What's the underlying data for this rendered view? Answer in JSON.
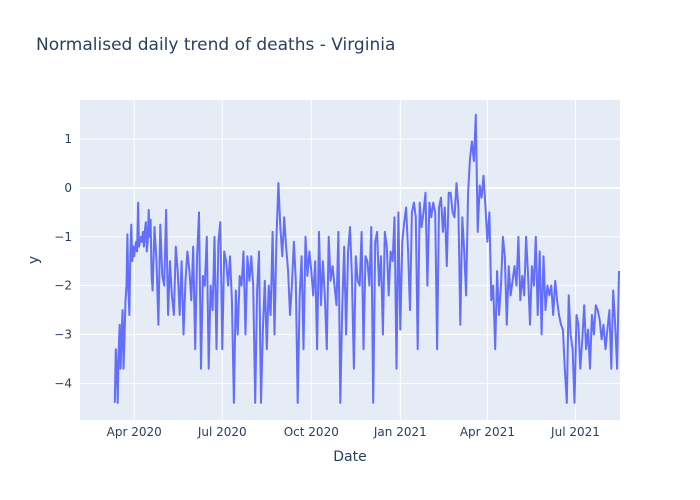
{
  "chart_data": {
    "type": "line",
    "title": "Normalised daily trend of deaths - Virginia",
    "xlabel": "Date",
    "ylabel": "y",
    "x_range": [
      "2020-02-05",
      "2021-08-16"
    ],
    "ylim": [
      -4.75,
      1.8
    ],
    "y_ticks": [
      1,
      0,
      -1,
      -2,
      -3,
      -4
    ],
    "y_tick_labels": [
      "1",
      "0",
      "−1",
      "−2",
      "−3",
      "−4"
    ],
    "x_ticks": [
      "2020-04-01",
      "2020-07-01",
      "2020-10-01",
      "2021-01-01",
      "2021-04-01",
      "2021-07-01"
    ],
    "x_tick_labels": [
      "Apr 2020",
      "Jul 2020",
      "Oct 2020",
      "Jan 2021",
      "Apr 2021",
      "Jul 2021"
    ],
    "grid": true,
    "colors": {
      "line": "#636efa",
      "plot_bg": "#e5ecf6",
      "grid": "#ffffff",
      "text": "#2a3f5f"
    },
    "series": [
      {
        "x": [
          "2020-03-12",
          "2020-03-13",
          "2020-03-14",
          "2020-03-15",
          "2020-03-16",
          "2020-03-17",
          "2020-03-18",
          "2020-03-19",
          "2020-03-20",
          "2020-03-21",
          "2020-03-22",
          "2020-03-23",
          "2020-03-24",
          "2020-03-25",
          "2020-03-26",
          "2020-03-27",
          "2020-03-28",
          "2020-03-29",
          "2020-03-30",
          "2020-03-31",
          "2020-04-01",
          "2020-04-02",
          "2020-04-03",
          "2020-04-04",
          "2020-04-05",
          "2020-04-06",
          "2020-04-07",
          "2020-04-08",
          "2020-04-09",
          "2020-04-10",
          "2020-04-11",
          "2020-04-12",
          "2020-04-13",
          "2020-04-14",
          "2020-04-15",
          "2020-04-16",
          "2020-04-17",
          "2020-04-18",
          "2020-04-19",
          "2020-04-20",
          "2020-04-22",
          "2020-04-24",
          "2020-04-26",
          "2020-04-28",
          "2020-04-30",
          "2020-05-02",
          "2020-05-04",
          "2020-05-06",
          "2020-05-08",
          "2020-05-10",
          "2020-05-12",
          "2020-05-14",
          "2020-05-16",
          "2020-05-18",
          "2020-05-20",
          "2020-05-22",
          "2020-05-24",
          "2020-05-26",
          "2020-05-28",
          "2020-05-30",
          "2020-06-01",
          "2020-06-03",
          "2020-06-05",
          "2020-06-07",
          "2020-06-09",
          "2020-06-11",
          "2020-06-13",
          "2020-06-15",
          "2020-06-17",
          "2020-06-19",
          "2020-06-21",
          "2020-06-23",
          "2020-06-25",
          "2020-06-27",
          "2020-06-29",
          "2020-07-01",
          "2020-07-03",
          "2020-07-05",
          "2020-07-07",
          "2020-07-09",
          "2020-07-11",
          "2020-07-13",
          "2020-07-15",
          "2020-07-17",
          "2020-07-19",
          "2020-07-21",
          "2020-07-23",
          "2020-07-25",
          "2020-07-27",
          "2020-07-29",
          "2020-07-31",
          "2020-08-02",
          "2020-08-04",
          "2020-08-06",
          "2020-08-08",
          "2020-08-10",
          "2020-08-12",
          "2020-08-14",
          "2020-08-16",
          "2020-08-18",
          "2020-08-20",
          "2020-08-22",
          "2020-08-24",
          "2020-08-26",
          "2020-08-28",
          "2020-08-30",
          "2020-09-01",
          "2020-09-03",
          "2020-09-05",
          "2020-09-07",
          "2020-09-09",
          "2020-09-11",
          "2020-09-13",
          "2020-09-15",
          "2020-09-17",
          "2020-09-19",
          "2020-09-21",
          "2020-09-23",
          "2020-09-25",
          "2020-09-27",
          "2020-09-29",
          "2020-10-01",
          "2020-10-03",
          "2020-10-05",
          "2020-10-07",
          "2020-10-09",
          "2020-10-11",
          "2020-10-13",
          "2020-10-15",
          "2020-10-17",
          "2020-10-19",
          "2020-10-21",
          "2020-10-23",
          "2020-10-25",
          "2020-10-27",
          "2020-10-29",
          "2020-10-31",
          "2020-11-02",
          "2020-11-04",
          "2020-11-06",
          "2020-11-08",
          "2020-11-10",
          "2020-11-12",
          "2020-11-14",
          "2020-11-16",
          "2020-11-18",
          "2020-11-20",
          "2020-11-22",
          "2020-11-24",
          "2020-11-26",
          "2020-11-28",
          "2020-11-30",
          "2020-12-02",
          "2020-12-04",
          "2020-12-06",
          "2020-12-08",
          "2020-12-10",
          "2020-12-12",
          "2020-12-14",
          "2020-12-16",
          "2020-12-18",
          "2020-12-20",
          "2020-12-22",
          "2020-12-24",
          "2020-12-26",
          "2020-12-28",
          "2020-12-30",
          "2021-01-01",
          "2021-01-03",
          "2021-01-05",
          "2021-01-07",
          "2021-01-09",
          "2021-01-11",
          "2021-01-13",
          "2021-01-15",
          "2021-01-17",
          "2021-01-19",
          "2021-01-21",
          "2021-01-23",
          "2021-01-25",
          "2021-01-27",
          "2021-01-29",
          "2021-01-31",
          "2021-02-02",
          "2021-02-04",
          "2021-02-06",
          "2021-02-08",
          "2021-02-10",
          "2021-02-12",
          "2021-02-14",
          "2021-02-16",
          "2021-02-18",
          "2021-02-20",
          "2021-02-22",
          "2021-02-24",
          "2021-02-26",
          "2021-02-28",
          "2021-03-02",
          "2021-03-04",
          "2021-03-06",
          "2021-03-08",
          "2021-03-10",
          "2021-03-12",
          "2021-03-14",
          "2021-03-16",
          "2021-03-18",
          "2021-03-20",
          "2021-03-22",
          "2021-03-24",
          "2021-03-26",
          "2021-03-28",
          "2021-03-30",
          "2021-04-01",
          "2021-04-03",
          "2021-04-05",
          "2021-04-07",
          "2021-04-09",
          "2021-04-11",
          "2021-04-13",
          "2021-04-15",
          "2021-04-17",
          "2021-04-19",
          "2021-04-21",
          "2021-04-23",
          "2021-04-25",
          "2021-04-27",
          "2021-04-29",
          "2021-05-01",
          "2021-05-03",
          "2021-05-05",
          "2021-05-07",
          "2021-05-09",
          "2021-05-11",
          "2021-05-13",
          "2021-05-15",
          "2021-05-17",
          "2021-05-19",
          "2021-05-21",
          "2021-05-23",
          "2021-05-25",
          "2021-05-27",
          "2021-05-29",
          "2021-05-31",
          "2021-06-02",
          "2021-06-04",
          "2021-06-06",
          "2021-06-08",
          "2021-06-10",
          "2021-06-12",
          "2021-06-14",
          "2021-06-16",
          "2021-06-18",
          "2021-06-20",
          "2021-06-22",
          "2021-06-24",
          "2021-06-26",
          "2021-06-28",
          "2021-06-30",
          "2021-07-02",
          "2021-07-04",
          "2021-07-06",
          "2021-07-08",
          "2021-07-10",
          "2021-07-12",
          "2021-07-14",
          "2021-07-16",
          "2021-07-18",
          "2021-07-20",
          "2021-07-22",
          "2021-07-24",
          "2021-07-26",
          "2021-07-28",
          "2021-07-30",
          "2021-08-01",
          "2021-08-03",
          "2021-08-05",
          "2021-08-07",
          "2021-08-09",
          "2021-08-11",
          "2021-08-13",
          "2021-08-15"
        ],
        "y": [
          -4.4,
          -3.3,
          -3.7,
          -4.4,
          -3.3,
          -2.8,
          -3.7,
          -3.0,
          -2.5,
          -3.7,
          -3.1,
          -2.3,
          -2.0,
          -0.95,
          -2.1,
          -2.6,
          -1.4,
          -0.75,
          -1.5,
          -1.2,
          -1.4,
          -1.2,
          -1.1,
          -1.3,
          -0.3,
          -1.2,
          -1.1,
          -1.0,
          -1.1,
          -0.9,
          -1.2,
          -0.9,
          -0.7,
          -1.3,
          -1.1,
          -0.45,
          -1.0,
          -0.65,
          -1.8,
          -2.1,
          -0.8,
          -1.5,
          -2.8,
          -0.75,
          -1.8,
          -2.0,
          -0.45,
          -2.6,
          -1.5,
          -2.2,
          -2.6,
          -1.2,
          -1.7,
          -2.6,
          -1.5,
          -3.0,
          -1.9,
          -1.3,
          -1.7,
          -2.3,
          -1.2,
          -3.3,
          -1.4,
          -0.5,
          -3.7,
          -1.8,
          -2.0,
          -1.0,
          -3.7,
          -2.0,
          -2.5,
          -1.0,
          -3.3,
          -1.1,
          -0.7,
          -3.3,
          -1.3,
          -1.5,
          -2.0,
          -1.4,
          -2.3,
          -4.4,
          -2.1,
          -3.0,
          -1.8,
          -2.0,
          -1.3,
          -3.0,
          -1.4,
          -1.9,
          -1.4,
          -2.0,
          -4.4,
          -2.1,
          -1.3,
          -4.4,
          -2.9,
          -1.9,
          -3.3,
          -2.0,
          -2.6,
          -0.9,
          -3.0,
          -1.0,
          0.1,
          -0.8,
          -1.4,
          -0.6,
          -1.2,
          -1.7,
          -2.6,
          -2.0,
          -1.1,
          -1.9,
          -4.4,
          -2.2,
          -1.4,
          -3.3,
          -1.0,
          -1.8,
          -1.3,
          -1.7,
          -2.2,
          -1.5,
          -3.3,
          -0.9,
          -2.4,
          -1.5,
          -2.2,
          -3.3,
          -1.0,
          -1.9,
          -1.6,
          -2.0,
          -2.4,
          -0.9,
          -4.4,
          -2.4,
          -1.2,
          -3.0,
          -1.3,
          -0.8,
          -1.8,
          -3.7,
          -1.4,
          -1.9,
          -2.0,
          -0.9,
          -3.3,
          -1.4,
          -1.5,
          -2.0,
          -0.8,
          -4.4,
          -1.1,
          -0.9,
          -2.0,
          -1.4,
          -3.0,
          -0.9,
          -1.2,
          -2.2,
          -1.3,
          -1.5,
          -0.6,
          -3.7,
          -0.5,
          -2.9,
          -1.1,
          -0.7,
          -0.4,
          -1.3,
          -2.5,
          -0.5,
          -0.3,
          -0.6,
          -3.3,
          -0.3,
          -0.8,
          -0.5,
          -0.1,
          -2.0,
          -0.3,
          -0.6,
          -0.3,
          -0.5,
          -3.3,
          -0.4,
          -0.2,
          -0.9,
          -0.4,
          -1.6,
          -0.1,
          -0.1,
          -0.5,
          -0.6,
          0.1,
          -0.4,
          -2.8,
          -0.6,
          -1.3,
          -2.2,
          -0.1,
          0.6,
          0.95,
          0.55,
          1.5,
          -0.9,
          0.05,
          -0.2,
          0.25,
          -0.4,
          -1.1,
          -0.5,
          -2.3,
          -2.0,
          -3.3,
          -1.7,
          -2.6,
          -2.0,
          -1.0,
          -1.4,
          -2.8,
          -1.6,
          -2.2,
          -1.9,
          -1.6,
          -2.0,
          -1.0,
          -2.3,
          -1.8,
          -2.2,
          -1.0,
          -1.8,
          -2.8,
          -1.6,
          -2.0,
          -1.0,
          -2.6,
          -1.3,
          -3.0,
          -1.4,
          -2.5,
          -2.0,
          -2.2,
          -2.0,
          -2.6,
          -1.9,
          -2.3,
          -2.6,
          -2.8,
          -2.9,
          -3.7,
          -4.4,
          -2.2,
          -3.0,
          -3.3,
          -4.4,
          -2.6,
          -2.8,
          -3.7,
          -3.1,
          -2.4,
          -3.3,
          -2.9,
          -3.7,
          -2.6,
          -3.0,
          -2.4,
          -2.5,
          -2.7,
          -3.1,
          -2.8,
          -3.3,
          -2.9,
          -2.5,
          -3.7,
          -2.1,
          -2.8,
          -3.7,
          -1.7
        ]
      }
    ]
  }
}
